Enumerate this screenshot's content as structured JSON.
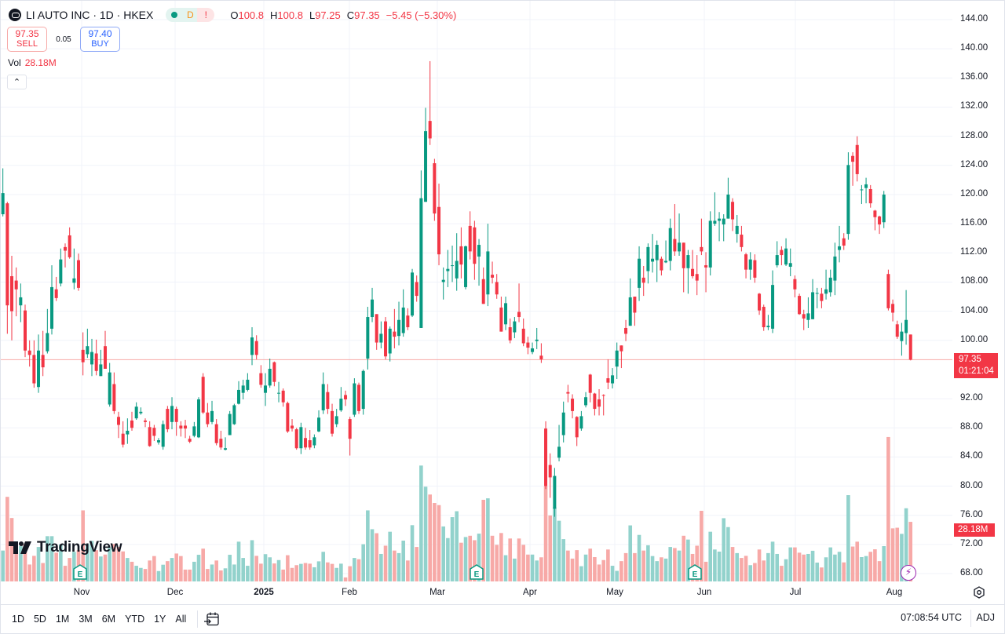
{
  "header": {
    "title": "LI AUTO INC · 1D · HKEX",
    "badges": {
      "market_status_icon": "green-dot",
      "delay": "D",
      "alert": "!"
    },
    "ohlc": {
      "o_label": "O",
      "o": "100.8",
      "h_label": "H",
      "h": "100.8",
      "l_label": "L",
      "l": "97.25",
      "c_label": "C",
      "c": "97.35",
      "change": "−5.45 (−5.30%)"
    }
  },
  "trade": {
    "sell_price": "97.35",
    "sell_label": "SELL",
    "spread": "0.05",
    "buy_price": "97.40",
    "buy_label": "BUY"
  },
  "volume_legend": {
    "label": "Vol",
    "value": "28.18M"
  },
  "collapse_icon": "chevron-up",
  "colors": {
    "up": "#089981",
    "down": "#f23645",
    "buy": "#2962ff",
    "events": "#9c27b0"
  },
  "price_axis": {
    "ticks": [
      "144.00",
      "140.00",
      "136.00",
      "132.00",
      "128.00",
      "124.00",
      "120.00",
      "116.00",
      "112.00",
      "108.00",
      "104.00",
      "100.00",
      "92.00",
      "88.00",
      "84.00",
      "80.00",
      "76.00",
      "72.00",
      "68.00"
    ],
    "last_price": "97.35",
    "countdown": "01:21:04",
    "volume_tag": "28.18M"
  },
  "time_axis": {
    "labels": [
      "Nov",
      "Dec",
      "2025",
      "Feb",
      "Mar",
      "Apr",
      "May",
      "Jun",
      "Jul",
      "Aug"
    ]
  },
  "markers": {
    "earnings": [
      "E",
      "E",
      "E"
    ],
    "event_icon": "lightning"
  },
  "logo": "TradingView",
  "toolbar": {
    "ranges": [
      "1D",
      "5D",
      "1M",
      "3M",
      "6M",
      "YTD",
      "1Y",
      "All"
    ],
    "calendar_icon": "calendar-goto",
    "clock": "07:08:54 UTC",
    "adj": "ADJ"
  },
  "chart_data": {
    "type": "candlestick",
    "symbol": "LI AUTO INC",
    "interval": "1D",
    "exchange": "HKEX",
    "ylim": [
      68,
      144
    ],
    "grid": true,
    "x_tick_labels": [
      "Nov",
      "Dec",
      "2025",
      "Feb",
      "Mar",
      "Apr",
      "May",
      "Jun",
      "Jul",
      "Aug"
    ],
    "ohlc_columns": [
      "open",
      "high",
      "low",
      "close"
    ],
    "candles": [
      [
        117.3,
        123.6,
        117.0,
        120.2
      ],
      [
        118.8,
        119.0,
        100.9,
        104.8
      ],
      [
        108.8,
        111.6,
        100.0,
        104.0
      ],
      [
        108.2,
        110.0,
        103.3,
        107.0
      ],
      [
        104.8,
        107.8,
        102.5,
        105.9
      ],
      [
        104.1,
        104.9,
        97.7,
        98.6
      ],
      [
        98.6,
        100.0,
        96.4,
        98.0
      ],
      [
        98.0,
        100.0,
        93.5,
        94.1
      ],
      [
        93.6,
        100.8,
        92.8,
        98.6
      ],
      [
        98.0,
        101.3,
        95.1,
        96.3
      ],
      [
        98.5,
        104.3,
        98.2,
        101.0
      ],
      [
        101.6,
        110.3,
        100.8,
        107.3
      ],
      [
        107.0,
        108.7,
        105.4,
        105.8
      ],
      [
        107.8,
        112.6,
        107.4,
        111.1
      ],
      [
        112.8,
        113.3,
        110.0,
        112.3
      ],
      [
        114.4,
        115.5,
        111.2,
        111.4
      ],
      [
        107.9,
        112.6,
        107.0,
        108.5
      ],
      [
        111.0,
        111.9,
        106.8,
        107.2
      ],
      [
        98.7,
        101.1,
        95.2,
        97.0
      ],
      [
        98.1,
        101.6,
        97.6,
        99.2
      ],
      [
        96.7,
        100.2,
        95.1,
        98.4
      ],
      [
        98.2,
        100.1,
        95.2,
        95.8
      ],
      [
        95.1,
        98.7,
        95.1,
        96.7
      ],
      [
        99.2,
        101.3,
        96.1,
        96.1
      ],
      [
        91.2,
        96.9,
        90.9,
        95.6
      ],
      [
        94.0,
        95.6,
        89.9,
        90.3
      ],
      [
        89.5,
        90.2,
        86.6,
        88.4
      ],
      [
        87.2,
        88.9,
        85.3,
        85.7
      ],
      [
        87.1,
        89.3,
        85.8,
        87.6
      ],
      [
        89.0,
        90.2,
        87.6,
        88.0
      ],
      [
        89.3,
        91.5,
        89.1,
        90.9
      ],
      [
        90.0,
        90.8,
        89.8,
        90.2
      ],
      [
        89.0,
        89.3,
        88.1,
        88.8
      ],
      [
        88.1,
        88.9,
        85.4,
        85.5
      ],
      [
        88.0,
        88.4,
        86.2,
        86.9
      ],
      [
        86.0,
        86.6,
        85.7,
        86.3
      ],
      [
        85.4,
        89.0,
        85.0,
        88.5
      ],
      [
        90.6,
        91.0,
        87.4,
        87.8
      ],
      [
        88.8,
        92.2,
        87.8,
        91.0
      ],
      [
        90.6,
        90.9,
        86.9,
        88.8
      ],
      [
        88.3,
        88.9,
        86.8,
        87.9
      ],
      [
        88.3,
        89.1,
        86.6,
        87.9
      ],
      [
        86.5,
        86.9,
        85.9,
        86.1
      ],
      [
        86.9,
        88.8,
        86.7,
        88.2
      ],
      [
        86.7,
        92.2,
        86.6,
        91.9
      ],
      [
        95.0,
        95.5,
        89.9,
        90.1
      ],
      [
        90.1,
        91.4,
        88.1,
        88.5
      ],
      [
        88.8,
        91.7,
        88.5,
        90.3
      ],
      [
        88.5,
        89.2,
        85.6,
        85.9
      ],
      [
        86.5,
        87.6,
        85.0,
        85.3
      ],
      [
        85.0,
        86.7,
        84.9,
        85.2
      ],
      [
        87.0,
        90.3,
        87.0,
        89.9
      ],
      [
        88.5,
        91.3,
        88.4,
        91.1
      ],
      [
        91.3,
        94.4,
        91.2,
        93.2
      ],
      [
        92.8,
        94.6,
        91.9,
        93.8
      ],
      [
        93.2,
        95.5,
        93.0,
        94.6
      ],
      [
        98.0,
        101.8,
        96.6,
        100.4
      ],
      [
        99.9,
        100.7,
        97.4,
        98.0
      ],
      [
        95.5,
        96.6,
        93.5,
        93.9
      ],
      [
        92.8,
        95.5,
        91.0,
        93.8
      ],
      [
        93.8,
        97.5,
        93.5,
        96.1
      ],
      [
        97.0,
        97.1,
        93.7,
        94.3
      ],
      [
        92.7,
        94.3,
        91.5,
        92.8
      ],
      [
        93.1,
        93.4,
        90.9,
        91.5
      ],
      [
        91.4,
        91.6,
        87.3,
        87.5
      ],
      [
        88.3,
        89.2,
        87.5,
        87.9
      ],
      [
        87.8,
        88.0,
        85.0,
        85.2
      ],
      [
        85.2,
        88.7,
        84.4,
        88.1
      ],
      [
        86.6,
        88.0,
        85.0,
        85.3
      ],
      [
        86.3,
        87.7,
        85.0,
        85.3
      ],
      [
        85.6,
        87.1,
        85.2,
        86.7
      ],
      [
        87.5,
        90.4,
        87.4,
        89.4
      ],
      [
        90.4,
        95.6,
        89.9,
        94.0
      ],
      [
        92.9,
        94.0,
        89.9,
        90.6
      ],
      [
        90.3,
        91.3,
        86.8,
        87.2
      ],
      [
        88.5,
        90.6,
        88.1,
        89.6
      ],
      [
        90.4,
        93.6,
        90.2,
        92.0
      ],
      [
        92.5,
        93.1,
        91.0,
        91.9
      ],
      [
        89.2,
        89.5,
        84.2,
        86.5
      ],
      [
        89.8,
        94.8,
        89.5,
        94.1
      ],
      [
        93.9,
        94.2,
        89.9,
        90.3
      ],
      [
        90.6,
        96.0,
        89.8,
        95.8
      ],
      [
        97.5,
        104.6,
        96.0,
        103.2
      ],
      [
        103.2,
        107.2,
        102.5,
        105.6
      ],
      [
        103.6,
        103.6,
        98.7,
        99.7
      ],
      [
        99.7,
        102.6,
        98.9,
        100.9
      ],
      [
        102.6,
        103.2,
        97.4,
        97.8
      ],
      [
        98.2,
        101.9,
        97.1,
        101.6
      ],
      [
        101.2,
        104.3,
        98.9,
        100.5
      ],
      [
        100.6,
        105.3,
        99.3,
        102.8
      ],
      [
        101.0,
        107.0,
        100.5,
        104.5
      ],
      [
        103.4,
        104.4,
        101.4,
        101.8
      ],
      [
        103.4,
        109.8,
        103.2,
        109.3
      ],
      [
        108.0,
        108.9,
        105.3,
        106.1
      ],
      [
        101.7,
        123.3,
        101.7,
        119.5
      ],
      [
        119.0,
        131.9,
        119.0,
        128.7
      ],
      [
        130.1,
        138.3,
        126.8,
        127.7
      ],
      [
        124.3,
        124.9,
        116.4,
        117.4
      ],
      [
        118.3,
        121.5,
        110.3,
        111.8
      ],
      [
        108.0,
        110.0,
        105.6,
        108.3
      ],
      [
        109.5,
        112.4,
        107.3,
        109.8
      ],
      [
        110.2,
        113.0,
        108.0,
        110.3
      ],
      [
        108.5,
        114.7,
        106.8,
        110.9
      ],
      [
        112.9,
        115.5,
        108.5,
        110.4
      ],
      [
        107.3,
        113.0,
        107.0,
        112.9
      ],
      [
        115.7,
        117.7,
        111.1,
        112.2
      ],
      [
        115.5,
        116.4,
        108.3,
        110.5
      ],
      [
        111.5,
        113.9,
        107.5,
        113.1
      ],
      [
        108.4,
        110.0,
        105.0,
        105.0
      ],
      [
        106.3,
        116.0,
        104.7,
        112.2
      ],
      [
        109.0,
        110.8,
        107.8,
        108.6
      ],
      [
        108.0,
        109.1,
        105.7,
        106.3
      ],
      [
        104.5,
        106.0,
        101.2,
        101.2
      ],
      [
        102.2,
        106.0,
        101.4,
        105.1
      ],
      [
        101.8,
        103.0,
        99.6,
        100.0
      ],
      [
        101.1,
        103.2,
        100.3,
        102.6
      ],
      [
        103.9,
        107.8,
        102.5,
        103.2
      ],
      [
        101.6,
        103.0,
        99.2,
        99.6
      ],
      [
        99.7,
        100.5,
        98.1,
        99.0
      ],
      [
        98.4,
        99.7,
        98.1,
        98.9
      ],
      [
        99.9,
        101.7,
        98.8,
        100.1
      ],
      [
        97.9,
        99.6,
        96.9,
        97.4
      ],
      [
        87.9,
        88.9,
        79.6,
        80.0
      ],
      [
        82.9,
        84.5,
        78.4,
        81.2
      ],
      [
        76.9,
        82.5,
        75.8,
        81.4
      ],
      [
        83.9,
        88.4,
        83.4,
        85.4
      ],
      [
        87.0,
        91.6,
        86.0,
        90.1
      ],
      [
        92.9,
        93.9,
        91.5,
        92.7
      ],
      [
        92.0,
        92.6,
        89.3,
        90.3
      ],
      [
        89.5,
        89.6,
        85.5,
        86.7
      ],
      [
        87.9,
        90.3,
        87.6,
        89.6
      ],
      [
        91.1,
        92.9,
        90.8,
        92.2
      ],
      [
        95.3,
        95.4,
        91.5,
        92.8
      ],
      [
        92.7,
        92.8,
        89.7,
        90.6
      ],
      [
        91.9,
        93.3,
        89.7,
        90.9
      ],
      [
        92.5,
        92.6,
        89.7,
        92.4
      ],
      [
        94.8,
        97.4,
        93.3,
        94.2
      ],
      [
        94.1,
        96.2,
        93.4,
        95.2
      ],
      [
        96.4,
        99.7,
        94.7,
        98.6
      ],
      [
        99.3,
        99.3,
        96.2,
        98.5
      ],
      [
        101.7,
        102.8,
        99.9,
        100.9
      ],
      [
        102.0,
        108.5,
        102.0,
        105.9
      ],
      [
        106.0,
        106.0,
        102.0,
        103.8
      ],
      [
        107.2,
        112.9,
        105.4,
        111.2
      ],
      [
        108.6,
        110.2,
        106.1,
        107.9
      ],
      [
        109.5,
        113.3,
        107.8,
        112.8
      ],
      [
        110.8,
        114.6,
        109.3,
        111.2
      ],
      [
        111.0,
        113.7,
        108.0,
        113.1
      ],
      [
        111.2,
        111.5,
        108.9,
        109.6
      ],
      [
        110.7,
        113.7,
        110.6,
        110.9
      ],
      [
        110.9,
        116.7,
        109.6,
        115.4
      ],
      [
        113.9,
        118.7,
        111.6,
        112.2
      ],
      [
        112.2,
        117.4,
        111.6,
        113.4
      ],
      [
        113.4,
        113.4,
        106.6,
        109.9
      ],
      [
        109.9,
        112.4,
        106.4,
        111.7
      ],
      [
        109.8,
        112.4,
        108.5,
        108.8
      ],
      [
        109.1,
        111.7,
        106.2,
        108.2
      ],
      [
        112.8,
        116.7,
        111.7,
        112.2
      ],
      [
        110.3,
        112.1,
        106.6,
        110.0
      ],
      [
        110.0,
        117.7,
        108.9,
        116.4
      ],
      [
        116.0,
        120.3,
        115.7,
        116.4
      ],
      [
        116.4,
        117.6,
        113.6,
        116.7
      ],
      [
        115.9,
        117.3,
        113.6,
        116.7
      ],
      [
        116.7,
        122.3,
        116.7,
        120.0
      ],
      [
        119.0,
        119.5,
        115.0,
        116.6
      ],
      [
        114.6,
        117.2,
        113.4,
        115.7
      ],
      [
        114.5,
        115.7,
        112.2,
        112.8
      ],
      [
        111.8,
        112.0,
        108.5,
        109.7
      ],
      [
        109.7,
        112.1,
        108.3,
        111.1
      ],
      [
        111.0,
        111.8,
        107.9,
        108.6
      ],
      [
        106.4,
        106.5,
        103.5,
        104.1
      ],
      [
        104.6,
        104.9,
        101.3,
        101.8
      ],
      [
        101.8,
        103.5,
        101.4,
        102.0
      ],
      [
        101.6,
        109.6,
        101.0,
        107.6
      ],
      [
        110.3,
        113.6,
        110.0,
        111.7
      ],
      [
        112.4,
        112.9,
        110.3,
        111.7
      ],
      [
        110.4,
        114.0,
        110.2,
        112.6
      ],
      [
        110.1,
        112.6,
        108.8,
        110.6
      ],
      [
        108.4,
        108.9,
        105.9,
        107.0
      ],
      [
        106.1,
        106.4,
        103.5,
        103.6
      ],
      [
        103.6,
        104.2,
        101.4,
        103.0
      ],
      [
        102.8,
        105.9,
        101.7,
        103.7
      ],
      [
        102.9,
        108.4,
        102.9,
        106.6
      ],
      [
        106.4,
        107.2,
        104.4,
        106.5
      ],
      [
        106.4,
        107.2,
        104.4,
        105.4
      ],
      [
        106.4,
        109.7,
        105.6,
        107.0
      ],
      [
        106.6,
        109.7,
        106.0,
        108.6
      ],
      [
        108.2,
        113.4,
        106.2,
        111.5
      ],
      [
        112.4,
        115.7,
        110.7,
        112.9
      ],
      [
        114.0,
        114.7,
        112.4,
        113.0
      ],
      [
        114.6,
        125.8,
        113.8,
        124.05
      ],
      [
        125.3,
        125.8,
        121.2,
        124.5
      ],
      [
        126.8,
        128.0,
        121.8,
        122.8
      ],
      [
        120.6,
        121.3,
        118.7,
        120.7
      ],
      [
        120.9,
        122.3,
        118.8,
        121.4
      ],
      [
        120.75,
        121.3,
        118.2,
        118.8
      ],
      [
        117.8,
        117.9,
        115.1,
        116.9
      ],
      [
        117.0,
        117.1,
        114.6,
        115.9
      ],
      [
        116.2,
        120.5,
        115.4,
        120.0
      ],
      [
        109.1,
        109.7,
        104.1,
        104.4
      ],
      [
        105.0,
        105.6,
        102.6,
        103.8
      ],
      [
        102.2,
        102.7,
        100.2,
        100.5
      ],
      [
        99.9,
        102.4,
        97.9,
        101.2
      ],
      [
        101.0,
        106.9,
        99.4,
        102.8
      ],
      [
        100.8,
        100.8,
        97.25,
        97.35
      ]
    ],
    "volume_millions": [
      14.6,
      40,
      30,
      18.8,
      16.7,
      17.7,
      8,
      12.1,
      16.3,
      8.7,
      21.4,
      21.4,
      13.6,
      17.6,
      7.4,
      11.1,
      14,
      14.8,
      33.6,
      17.7,
      19.2,
      14.8,
      11.8,
      12.7,
      16.1,
      17.7,
      16.3,
      14.2,
      11.1,
      9.3,
      7.4,
      6.4,
      5.9,
      9.9,
      12,
      4.9,
      7.9,
      9.6,
      11.1,
      13.2,
      12,
      5.6,
      5.6,
      9.3,
      12.6,
      15.5,
      5.9,
      8,
      9.9,
      5.2,
      6.2,
      12.6,
      8,
      18.8,
      11.1,
      7.4,
      19.5,
      12.1,
      8.4,
      12.9,
      11.4,
      8.5,
      10.1,
      5.6,
      12.4,
      6.4,
      7.7,
      8.3,
      8.7,
      8.4,
      6.7,
      9.5,
      14,
      9,
      8.3,
      6.4,
      8.4,
      1.9,
      7.2,
      11.1,
      10.5,
      17.6,
      33.6,
      24.7,
      22.8,
      13,
      16.9,
      23.5,
      14.6,
      13.4,
      19.3,
      9.9,
      26.6,
      16.3,
      54.8,
      44.8,
      41.1,
      37.1,
      36.1,
      26,
      20.5,
      30.4,
      33.2,
      18.3,
      21,
      21.6,
      19.5,
      22.6,
      38.6,
      39.3,
      21.6,
      17.3,
      22.9,
      12.4,
      20.3,
      10.8,
      20.3,
      17.3,
      12.7,
      12.7,
      9.9,
      11.4,
      45,
      31.2,
      35,
      28.7,
      20,
      14.6,
      10.8,
      14.8,
      7.2,
      12.7,
      15.5,
      11.5,
      8,
      10.1,
      15.1,
      7.4,
      5,
      9.6,
      13.4,
      26.5,
      13.4,
      22,
      14.6,
      17.1,
      12,
      9.6,
      11.4,
      10.8,
      16.3,
      15.8,
      14.6,
      21.6,
      19.8,
      13,
      16.9,
      33.4,
      9.3,
      23.5,
      15.1,
      14.1,
      29.9,
      25.7,
      16.3,
      13.4,
      11.1,
      12.1,
      7.7,
      8.7,
      15.1,
      9.9,
      13.4,
      18.8,
      13,
      7.4,
      10.5,
      16.1,
      16.1,
      13.6,
      12.7,
      13,
      14.5,
      8.9,
      6.6,
      11.4,
      16.1,
      12.7,
      14,
      9,
      40.8,
      16.5,
      18.8,
      11.5,
      12,
      14,
      15.2,
      9.6,
      16.7,
      68.3,
      25.1,
      25.4,
      22.5,
      34.6,
      28.18
    ],
    "last_volume": "28.18M"
  }
}
